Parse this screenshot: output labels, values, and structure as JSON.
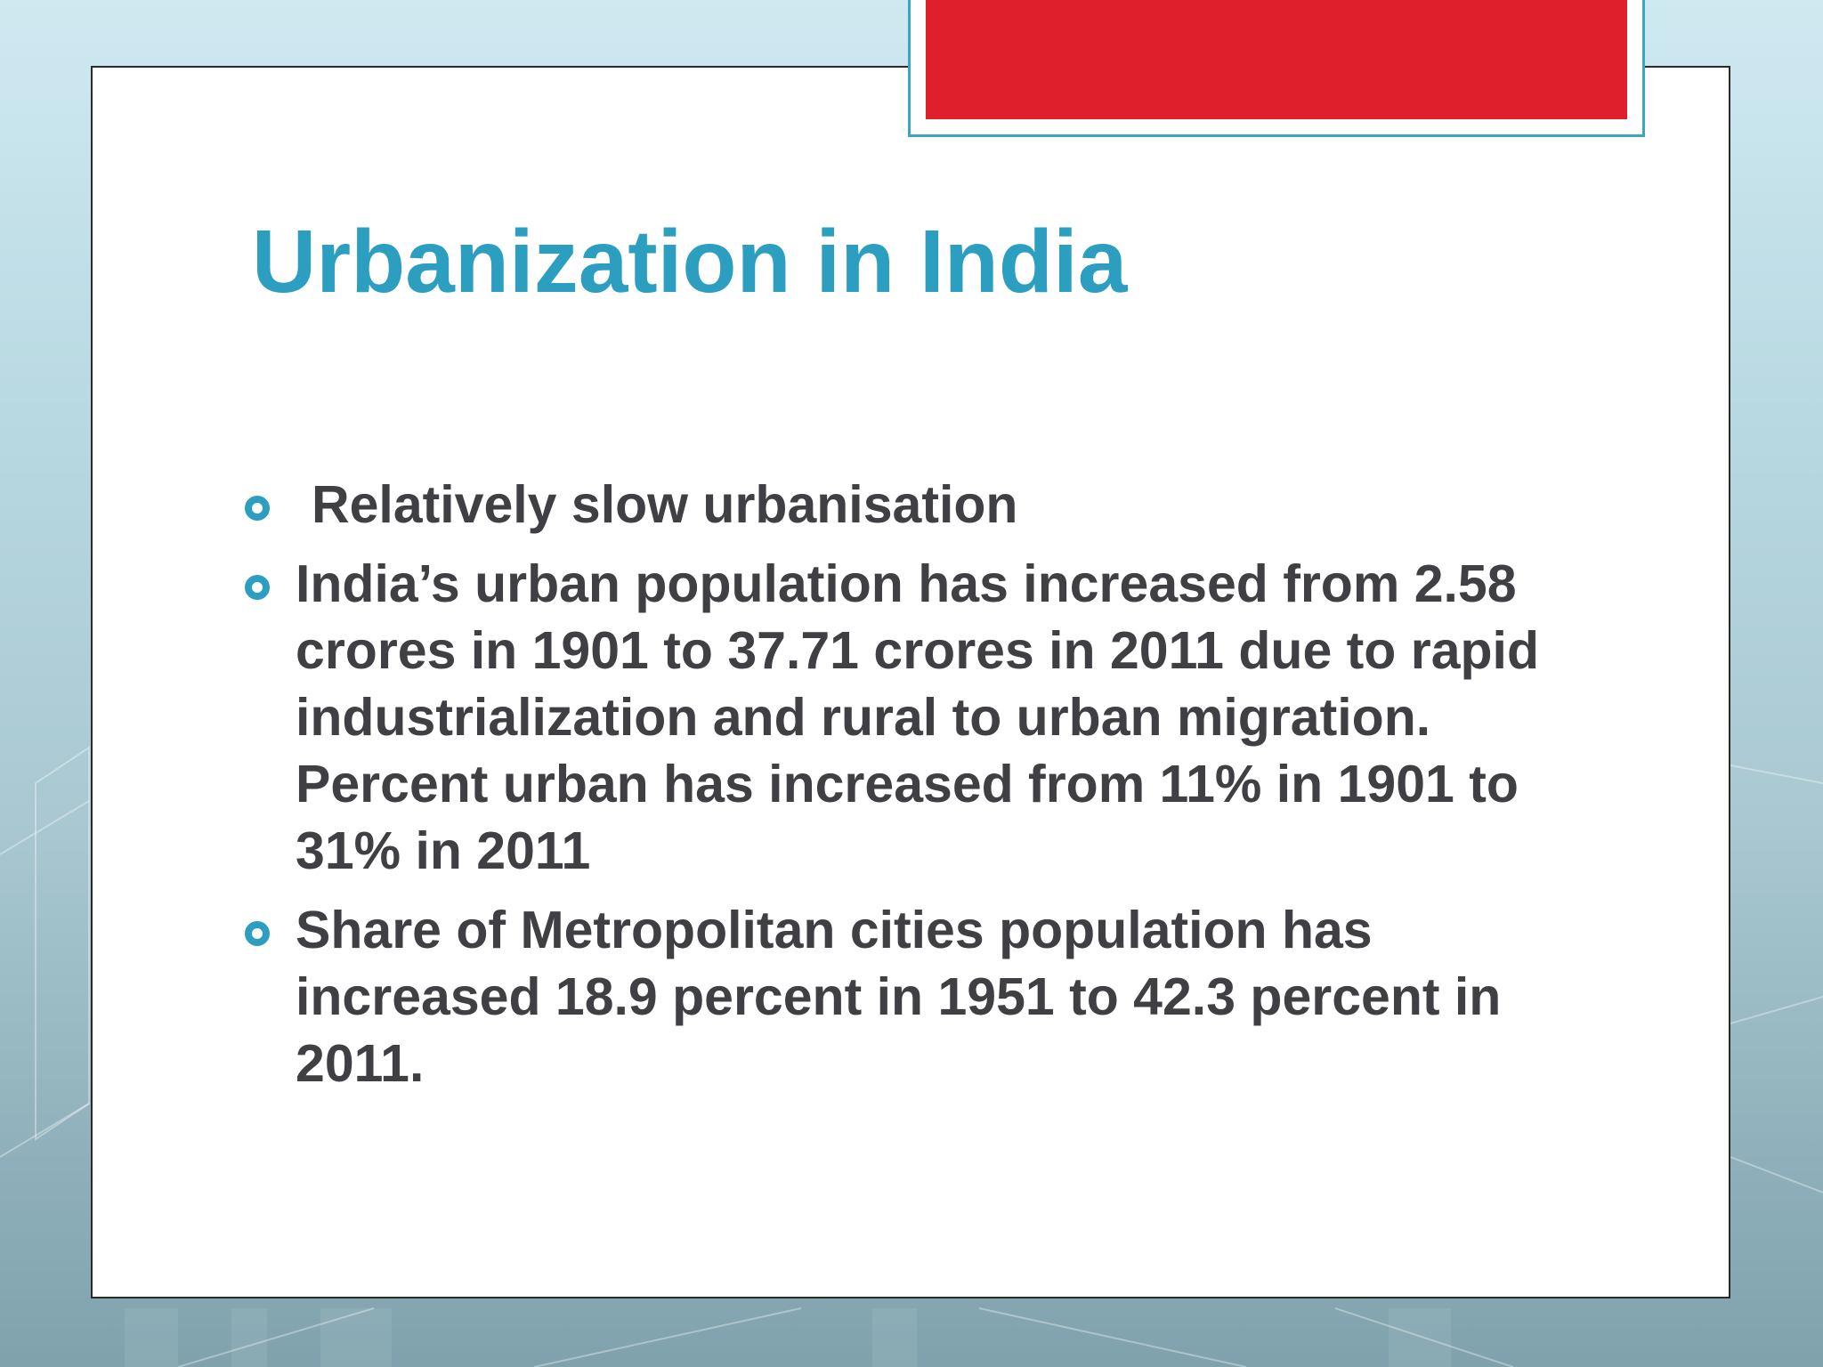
{
  "slide": {
    "title": "Urbanization in India",
    "bullets": [
      {
        "text": " Relatively slow urbanisation",
        "icon": "ring-bullet-icon"
      },
      {
        "text": "India’s urban population has increased from 2.58 crores in 1901 to 37.71 crores in 2011 due to rapid industrialization and rural to urban migration. Percent urban has increased from 11% in 1901 to 31% in 2011",
        "icon": "ring-bullet-icon"
      },
      {
        "text": "Share of Metropolitan cities population has increased 18.9 percent in 1951 to 42.3 percent in 2011.",
        "icon": "ring-bullet-icon"
      }
    ]
  },
  "colors": {
    "title": "#2c9ec0",
    "body_text": "#3f3f44",
    "bullet": "#2c9ec0",
    "accent_block": "#df1f2b",
    "accent_frame": "#3aa5c4",
    "panel": "#ffffff"
  }
}
